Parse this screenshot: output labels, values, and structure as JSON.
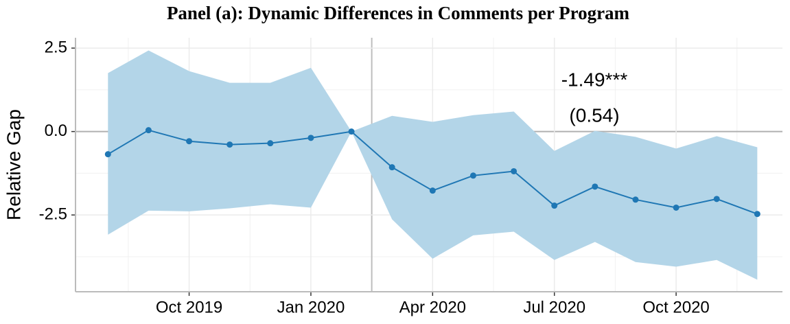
{
  "chart_data": {
    "type": "line",
    "title": "Panel (a): Dynamic Differences in Comments per Program",
    "ylabel": "Relative Gap",
    "x": [
      "2019-08",
      "2019-09",
      "2019-10",
      "2019-11",
      "2019-12",
      "2020-01",
      "2020-02",
      "2020-03",
      "2020-04",
      "2020-05",
      "2020-06",
      "2020-07",
      "2020-08",
      "2020-09",
      "2020-10",
      "2020-11",
      "2020-12"
    ],
    "color": "#1f77b4",
    "band_color": "#b3d5e8",
    "values": [
      -0.68,
      0.04,
      -0.29,
      -0.39,
      -0.35,
      -0.19,
      0,
      -1.07,
      -1.77,
      -1.32,
      -1.19,
      -2.22,
      -1.65,
      -2.04,
      -2.28,
      -2.02,
      -2.47
    ],
    "upper": [
      1.75,
      2.43,
      1.81,
      1.46,
      1.46,
      1.91,
      0,
      0.47,
      0.29,
      0.49,
      0.6,
      -0.58,
      0.02,
      -0.16,
      -0.51,
      -0.14,
      -0.47
    ],
    "lower": [
      -3.09,
      -2.37,
      -2.39,
      -2.3,
      -2.18,
      -2.28,
      0,
      -2.63,
      -3.81,
      -3.11,
      -3.0,
      -3.85,
      -3.31,
      -3.91,
      -4.05,
      -3.85,
      -4.44
    ],
    "ylim": [
      -4.8,
      2.81
    ],
    "yticks": [
      2.5,
      {
        "value": 0,
        "label": "0.0"
      },
      -2.5
    ],
    "xticks": [
      {
        "value": "2019-10",
        "label": "Oct 2019"
      },
      {
        "value": "2020-01",
        "label": "Jan 2020"
      },
      {
        "value": "2020-04",
        "label": "Apr 2020"
      },
      {
        "value": "2020-07",
        "label": "Jul 2020"
      },
      {
        "value": "2020-10",
        "label": "Oct 2020"
      }
    ],
    "annotations": [
      "-1.49***",
      "(0.54)"
    ],
    "grid": true
  }
}
